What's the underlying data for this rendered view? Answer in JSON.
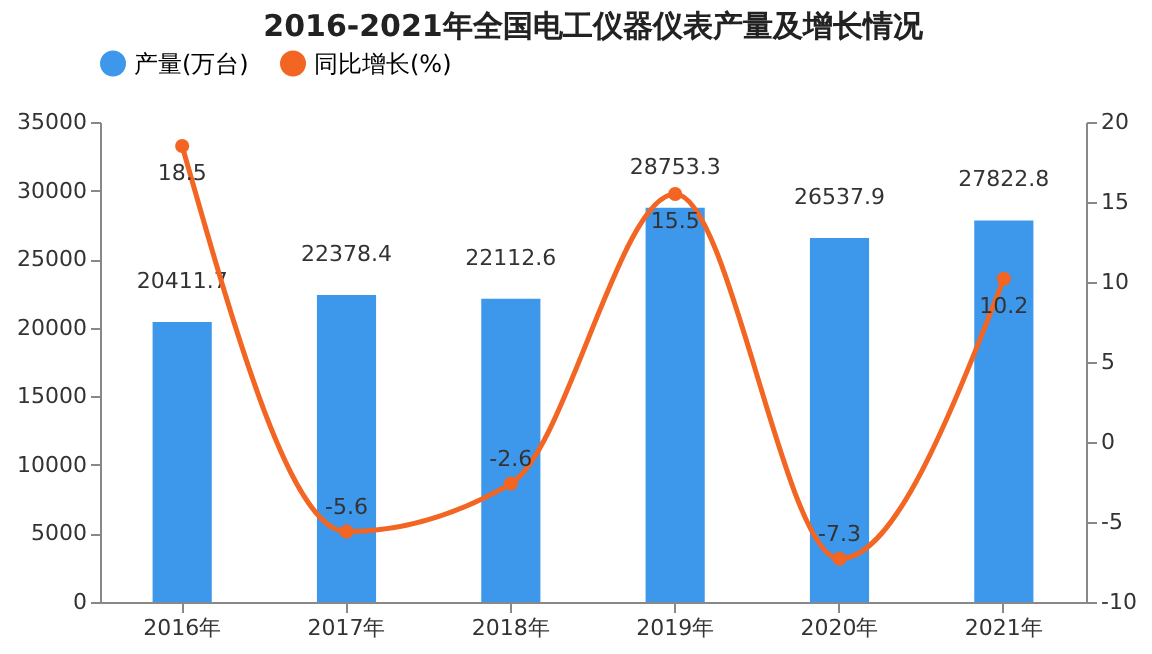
{
  "chart_data": {
    "type": "bar",
    "title": "2016-2021年全国电工仪器仪表产量及增长情况",
    "categories": [
      "2016年",
      "2017年",
      "2018年",
      "2019年",
      "2020年",
      "2021年"
    ],
    "series": [
      {
        "name": "产量(万台)",
        "type": "bar",
        "color": "#3d97ea",
        "values": [
          20411.7,
          22378.4,
          22112.6,
          28753.3,
          26537.9,
          27822.8
        ]
      },
      {
        "name": "同比增长(%)",
        "type": "line",
        "axis": "y2",
        "color": "#f26522",
        "values": [
          18.5,
          -5.6,
          -2.6,
          15.5,
          -7.3,
          10.2
        ]
      }
    ],
    "ylim": [
      0,
      35000
    ],
    "yticks": [
      0,
      5000,
      10000,
      15000,
      20000,
      25000,
      30000,
      35000
    ],
    "y2lim": [
      -10,
      20
    ],
    "y2ticks": [
      -10,
      -5,
      0,
      5,
      10,
      15,
      20
    ],
    "legend": "top",
    "marker": "circle",
    "data_labels": true
  }
}
